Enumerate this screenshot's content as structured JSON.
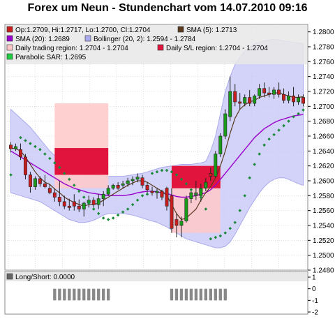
{
  "title": "Forex um Neun - Stundenchart vom 14.07.2010 09:16",
  "colors": {
    "candle_up": "#1a9a1a",
    "candle_down": "#c81e1e",
    "sma5": "#5a3a1e",
    "sma20": "#9900cc",
    "bollinger_fill": "#c8c8f8",
    "bollinger_line": "#aaaaee",
    "trading_region": "#ffc8c8",
    "sl_region": "#e0143c",
    "sar": "#1a8a3a",
    "panel_bg": "#e8e8e8",
    "grid": "#cccccc",
    "longshort": "#888888"
  },
  "legend": [
    {
      "text": "Op:1.2709, Hi:1.2717, Lo:1.2700, Cl:1.2704",
      "color": "#c81e1e"
    },
    {
      "text": "SMA (5): 1.2713",
      "color": "#5a3a1e"
    },
    {
      "text": "SMA (20): 1.2689",
      "color": "#9900cc"
    },
    {
      "text": "Bollinger (20, 2): 1.2594 - 1.2784",
      "color": "#aaaaee"
    },
    {
      "text": "Daily trading region: 1.2704 - 1.2704",
      "color": "#ffc8c8"
    },
    {
      "text": "Daily S/L region: 1.2704 - 1.2704",
      "color": "#e0143c"
    },
    {
      "text": "Parabolic SAR: 1.2695",
      "color": "#22cc44"
    }
  ],
  "longshort_label": "Long/Short: 0.0000",
  "chart_data": [
    {
      "type": "candlestick",
      "ylim": [
        1.248,
        1.281
      ],
      "yticks": [
        "1.2480",
        "1.2500",
        "1.2520",
        "1.2540",
        "1.2560",
        "1.2580",
        "1.2600",
        "1.2620",
        "1.2640",
        "1.2660",
        "1.2680",
        "1.2700",
        "1.2720",
        "1.2740",
        "1.2760",
        "1.2780",
        "1.2800"
      ],
      "candles": [
        [
          1.2648,
          1.2652,
          1.2638,
          1.2643
        ],
        [
          1.2643,
          1.265,
          1.264,
          1.2646
        ],
        [
          1.2642,
          1.265,
          1.2628,
          1.2632
        ],
        [
          1.2632,
          1.2636,
          1.2602,
          1.2608
        ],
        [
          1.2608,
          1.2612,
          1.2584,
          1.2592
        ],
        [
          1.2592,
          1.2606,
          1.2588,
          1.2603
        ],
        [
          1.2603,
          1.2606,
          1.2592,
          1.2596
        ],
        [
          1.2596,
          1.2608,
          1.259,
          1.2592
        ],
        [
          1.259,
          1.2596,
          1.2582,
          1.2584
        ],
        [
          1.2584,
          1.259,
          1.2572,
          1.2578
        ],
        [
          1.2578,
          1.26,
          1.2566,
          1.2572
        ],
        [
          1.2572,
          1.258,
          1.2562,
          1.2566
        ],
        [
          1.2566,
          1.2576,
          1.256,
          1.2564
        ],
        [
          1.2572,
          1.2582,
          1.256,
          1.2566
        ],
        [
          1.2566,
          1.2575,
          1.2558,
          1.2562
        ],
        [
          1.2562,
          1.2572,
          1.2552,
          1.257
        ],
        [
          1.257,
          1.258,
          1.2564,
          1.2574
        ],
        [
          1.2574,
          1.2578,
          1.2564,
          1.2568
        ],
        [
          1.2568,
          1.2582,
          1.2562,
          1.2576
        ],
        [
          1.2576,
          1.2586,
          1.2566,
          1.2582
        ],
        [
          1.2582,
          1.2594,
          1.258,
          1.259
        ],
        [
          1.259,
          1.2596,
          1.2588,
          1.2594
        ],
        [
          1.2594,
          1.2598,
          1.2588,
          1.259
        ],
        [
          1.2594,
          1.26,
          1.259,
          1.2596
        ],
        [
          1.2596,
          1.2604,
          1.2592,
          1.26
        ],
        [
          1.26,
          1.2606,
          1.2594,
          1.2602
        ],
        [
          1.2602,
          1.261,
          1.2598,
          1.2605
        ],
        [
          1.2604,
          1.2608,
          1.259,
          1.2594
        ],
        [
          1.2594,
          1.2598,
          1.2584,
          1.2588
        ],
        [
          1.2586,
          1.2592,
          1.258,
          1.2584
        ],
        [
          1.2584,
          1.259,
          1.2576,
          1.2586
        ],
        [
          1.2586,
          1.2588,
          1.2574,
          1.2578
        ],
        [
          1.259,
          1.2592,
          1.256,
          1.2566
        ],
        [
          1.258,
          1.259,
          1.253,
          1.2536
        ],
        [
          1.2548,
          1.2556,
          1.2524,
          1.254
        ],
        [
          1.254,
          1.2552,
          1.2524,
          1.2546
        ],
        [
          1.2546,
          1.258,
          1.2544,
          1.2576
        ],
        [
          1.2576,
          1.2588,
          1.257,
          1.2584
        ],
        [
          1.2584,
          1.26,
          1.2574,
          1.258
        ],
        [
          1.258,
          1.2596,
          1.2572,
          1.259
        ],
        [
          1.259,
          1.2604,
          1.2586,
          1.2598
        ],
        [
          1.261,
          1.2618,
          1.26,
          1.2606
        ],
        [
          1.2606,
          1.264,
          1.2604,
          1.2636
        ],
        [
          1.2636,
          1.2664,
          1.2632,
          1.266
        ],
        [
          1.266,
          1.2696,
          1.2656,
          1.269
        ],
        [
          1.2686,
          1.274,
          1.268,
          1.272
        ],
        [
          1.272,
          1.273,
          1.27,
          1.2706
        ],
        [
          1.2706,
          1.2718,
          1.2696,
          1.2704
        ],
        [
          1.2704,
          1.2716,
          1.27,
          1.2712
        ],
        [
          1.2712,
          1.2722,
          1.27,
          1.2704
        ],
        [
          1.2704,
          1.2716,
          1.27,
          1.2714
        ],
        [
          1.2714,
          1.273,
          1.271,
          1.2724
        ],
        [
          1.2724,
          1.2732,
          1.2712,
          1.2718
        ],
        [
          1.2718,
          1.2726,
          1.2712,
          1.2716
        ],
        [
          1.2716,
          1.2726,
          1.271,
          1.2722
        ],
        [
          1.2722,
          1.2732,
          1.2712,
          1.2716
        ],
        [
          1.2716,
          1.2724,
          1.2704,
          1.2708
        ],
        [
          1.2708,
          1.272,
          1.2704,
          1.2714
        ],
        [
          1.2714,
          1.2726,
          1.27,
          1.2706
        ],
        [
          1.2706,
          1.2716,
          1.2702,
          1.2712
        ],
        [
          1.2712,
          1.2716,
          1.27,
          1.2704
        ]
      ],
      "sma5": [
        1.2644,
        1.2643,
        1.264,
        1.2632,
        1.2622,
        1.2612,
        1.2604,
        1.2598,
        1.2595,
        1.2589,
        1.2584,
        1.2578,
        1.2574,
        1.2571,
        1.2568,
        1.2566,
        1.2568,
        1.2568,
        1.257,
        1.2574,
        1.2578,
        1.2582,
        1.2586,
        1.259,
        1.2594,
        1.2597,
        1.26,
        1.26,
        1.2598,
        1.2594,
        1.259,
        1.2586,
        1.258,
        1.2568,
        1.2556,
        1.2548,
        1.255,
        1.2556,
        1.2562,
        1.2574,
        1.2584,
        1.2592,
        1.2604,
        1.262,
        1.264,
        1.2664,
        1.2684,
        1.2696,
        1.2702,
        1.2706,
        1.2708,
        1.2712,
        1.2714,
        1.2716,
        1.2718,
        1.2718,
        1.2716,
        1.2714,
        1.2712,
        1.2712,
        1.2713
      ],
      "sma20": [
        1.264,
        1.2636,
        1.2632,
        1.2628,
        1.2624,
        1.262,
        1.2616,
        1.2612,
        1.2608,
        1.2604,
        1.26,
        1.2596,
        1.2593,
        1.259,
        1.2588,
        1.2586,
        1.2584,
        1.2583,
        1.2582,
        1.2581,
        1.258,
        1.258,
        1.258,
        1.258,
        1.2581,
        1.2582,
        1.2584,
        1.2585,
        1.2586,
        1.2586,
        1.2585,
        1.2584,
        1.2583,
        1.2581,
        1.2579,
        1.2578,
        1.2578,
        1.2579,
        1.258,
        1.2582,
        1.2584,
        1.2588,
        1.2594,
        1.2602,
        1.261,
        1.2618,
        1.2626,
        1.2634,
        1.2642,
        1.265,
        1.2658,
        1.2664,
        1.267,
        1.2674,
        1.2678,
        1.2681,
        1.2683,
        1.2685,
        1.2687,
        1.2688,
        1.2689
      ],
      "boll_upper": [
        1.2696,
        1.269,
        1.2684,
        1.2678,
        1.2672,
        1.2664,
        1.2656,
        1.2648,
        1.264,
        1.2634,
        1.2628,
        1.2624,
        1.262,
        1.2618,
        1.2616,
        1.2614,
        1.2612,
        1.261,
        1.2608,
        1.2606,
        1.2606,
        1.2606,
        1.2606,
        1.2606,
        1.2607,
        1.2608,
        1.2609,
        1.261,
        1.2612,
        1.2614,
        1.2616,
        1.2618,
        1.2619,
        1.262,
        1.2621,
        1.2622,
        1.2622,
        1.2622,
        1.2623,
        1.2624,
        1.2626,
        1.264,
        1.266,
        1.269,
        1.272,
        1.274,
        1.2756,
        1.2766,
        1.2774,
        1.278,
        1.2784,
        1.2786,
        1.2788,
        1.2789,
        1.279,
        1.2789,
        1.2788,
        1.2787,
        1.2786,
        1.2785,
        1.2784
      ],
      "boll_lower": [
        1.2584,
        1.2582,
        1.258,
        1.2578,
        1.2576,
        1.2574,
        1.2572,
        1.2568,
        1.2564,
        1.256,
        1.2556,
        1.2552,
        1.2548,
        1.2546,
        1.2544,
        1.2544,
        1.2545,
        1.2547,
        1.255,
        1.2554,
        1.2556,
        1.2556,
        1.2556,
        1.2556,
        1.2555,
        1.2554,
        1.2552,
        1.255,
        1.2548,
        1.2546,
        1.2544,
        1.2541,
        1.2538,
        1.2534,
        1.253,
        1.2526,
        1.2522,
        1.252,
        1.2518,
        1.2516,
        1.2514,
        1.2512,
        1.251,
        1.251,
        1.2512,
        1.2518,
        1.2528,
        1.254,
        1.2552,
        1.2564,
        1.2574,
        1.2584,
        1.2592,
        1.2598,
        1.2602,
        1.2604,
        1.2604,
        1.2602,
        1.2599,
        1.2596,
        1.2594
      ],
      "sar": [
        [
          0,
          1.2608
        ],
        [
          2,
          1.2658
        ],
        [
          3,
          1.2654
        ],
        [
          4,
          1.265
        ],
        [
          5,
          1.2646
        ],
        [
          6,
          1.2642
        ],
        [
          7,
          1.2636
        ],
        [
          8,
          1.263
        ],
        [
          9,
          1.2624
        ],
        [
          10,
          1.2618
        ],
        [
          11,
          1.261
        ],
        [
          12,
          1.2602
        ],
        [
          13,
          1.2594
        ],
        [
          14,
          1.2586
        ],
        [
          15,
          1.2578
        ],
        [
          16,
          1.257
        ],
        [
          17,
          1.2562
        ],
        [
          18,
          1.2556
        ],
        [
          19,
          1.255
        ],
        [
          20,
          1.2548
        ],
        [
          21,
          1.255
        ],
        [
          22,
          1.2554
        ],
        [
          23,
          1.2558
        ],
        [
          24,
          1.2562
        ],
        [
          25,
          1.2568
        ],
        [
          26,
          1.2574
        ],
        [
          27,
          1.258
        ],
        [
          28,
          1.2582
        ],
        [
          29,
          1.261
        ],
        [
          30,
          1.2612
        ],
        [
          31,
          1.2614
        ],
        [
          32,
          1.2614
        ],
        [
          33,
          1.2612
        ],
        [
          34,
          1.2608
        ],
        [
          35,
          1.2602
        ],
        [
          36,
          1.2596
        ],
        [
          37,
          1.2588
        ],
        [
          38,
          1.2582
        ],
        [
          39,
          1.2578
        ],
        [
          40,
          1.2562
        ],
        [
          41,
          1.2522
        ],
        [
          42,
          1.2524
        ],
        [
          43,
          1.2526
        ],
        [
          44,
          1.253
        ],
        [
          45,
          1.2536
        ],
        [
          46,
          1.2544
        ],
        [
          47,
          1.256
        ],
        [
          48,
          1.258
        ],
        [
          49,
          1.2604
        ],
        [
          50,
          1.2622
        ],
        [
          51,
          1.2636
        ],
        [
          52,
          1.2648
        ],
        [
          53,
          1.2656
        ],
        [
          54,
          1.2662
        ],
        [
          55,
          1.2668
        ],
        [
          56,
          1.2674
        ],
        [
          57,
          1.268
        ],
        [
          58,
          1.2686
        ],
        [
          59,
          1.269
        ],
        [
          60,
          1.2695
        ]
      ],
      "trading_regions": [
        {
          "x0": 9,
          "x1": 20,
          "low": 1.259,
          "high": 1.2704
        },
        {
          "x0": 33,
          "x1": 43,
          "low": 1.253,
          "high": 1.262
        }
      ],
      "sl_regions": [
        {
          "x0": 9,
          "x1": 20,
          "low": 1.2608,
          "high": 1.2644
        },
        {
          "x0": 33,
          "x1": 43,
          "low": 1.259,
          "high": 1.262
        }
      ]
    },
    {
      "type": "bar",
      "title": "Long/Short: 0.0000",
      "ylim": [
        -2,
        1
      ],
      "yticks": [
        "1",
        "0",
        "-1",
        "-2"
      ],
      "values": [
        0,
        0,
        0,
        0,
        0,
        0,
        0,
        0,
        0,
        -1,
        -1,
        -1,
        -1,
        -1,
        -1,
        -1,
        -1,
        -1,
        -1,
        -1,
        -1,
        0,
        0,
        0,
        0,
        0,
        0,
        0,
        0,
        0,
        0,
        0,
        0,
        -1,
        -1,
        -1,
        -1,
        -1,
        -1,
        -1,
        -1,
        -1,
        -1,
        -1,
        -1,
        0,
        0,
        0,
        0,
        0,
        0,
        0,
        0,
        0,
        0,
        0,
        0,
        0,
        0,
        0,
        0
      ]
    }
  ]
}
